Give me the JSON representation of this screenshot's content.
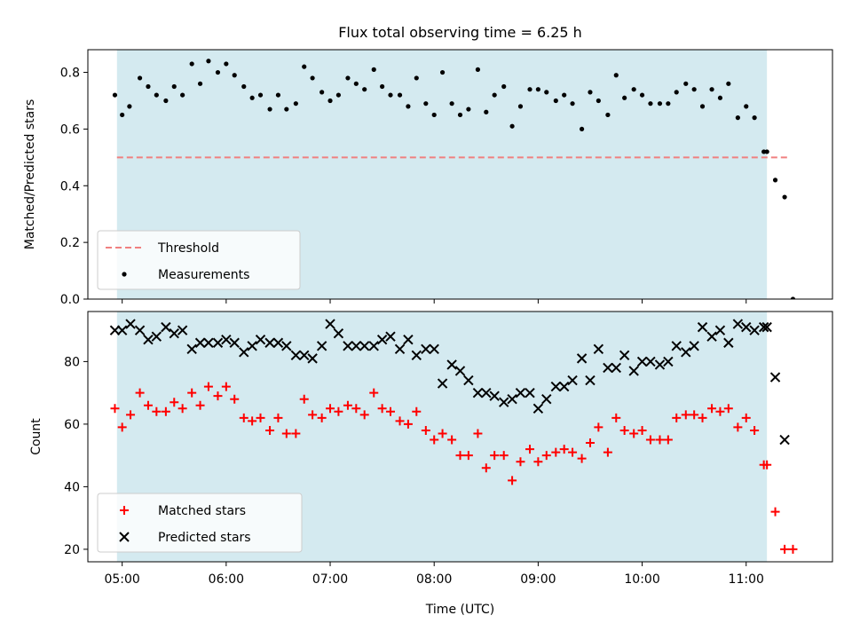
{
  "title": "Flux total observing time = 6.25 h",
  "colors": {
    "shade": "#d4eaf0",
    "threshold": "#f08080",
    "measurement": "#000000",
    "matched": "#ff0000",
    "predicted": "#000000"
  },
  "chart_data": [
    {
      "type": "scatter",
      "ylabel": "Matched/Predicted stars",
      "xlim": [
        4.67,
        11.83
      ],
      "ylim": [
        0,
        0.88
      ],
      "yticks": [
        0.0,
        0.2,
        0.4,
        0.6,
        0.8
      ],
      "ytick_labels": [
        "0.0",
        "0.2",
        "0.4",
        "0.6",
        "0.8"
      ],
      "shaded_x": [
        4.95,
        11.2
      ],
      "threshold": {
        "name": "Threshold",
        "y": 0.5,
        "x": [
          4.95,
          11.4
        ]
      },
      "legend": {
        "position": "lower-left",
        "entries": [
          "Threshold",
          "Measurements"
        ]
      },
      "series": [
        {
          "name": "Measurements",
          "x": [
            4.93,
            5.0,
            5.07,
            5.17,
            5.25,
            5.33,
            5.42,
            5.5,
            5.58,
            5.67,
            5.75,
            5.83,
            5.92,
            6.0,
            6.08,
            6.17,
            6.25,
            6.33,
            6.42,
            6.5,
            6.58,
            6.67,
            6.75,
            6.83,
            6.92,
            7.0,
            7.08,
            7.17,
            7.25,
            7.33,
            7.42,
            7.5,
            7.58,
            7.67,
            7.75,
            7.83,
            7.92,
            8.0,
            8.08,
            8.17,
            8.25,
            8.33,
            8.42,
            8.5,
            8.58,
            8.67,
            8.75,
            8.83,
            8.92,
            9.0,
            9.08,
            9.17,
            9.25,
            9.33,
            9.42,
            9.5,
            9.58,
            9.67,
            9.75,
            9.83,
            9.92,
            10.0,
            10.08,
            10.17,
            10.25,
            10.33,
            10.42,
            10.5,
            10.58,
            10.67,
            10.75,
            10.83,
            10.92,
            11.0,
            11.08,
            11.17,
            11.2,
            11.28,
            11.37,
            11.45
          ],
          "y": [
            0.72,
            0.65,
            0.68,
            0.78,
            0.75,
            0.72,
            0.7,
            0.75,
            0.72,
            0.83,
            0.76,
            0.84,
            0.8,
            0.83,
            0.79,
            0.75,
            0.71,
            0.72,
            0.67,
            0.72,
            0.67,
            0.69,
            0.82,
            0.78,
            0.73,
            0.7,
            0.72,
            0.78,
            0.76,
            0.74,
            0.81,
            0.75,
            0.72,
            0.72,
            0.68,
            0.78,
            0.69,
            0.65,
            0.8,
            0.69,
            0.65,
            0.67,
            0.81,
            0.66,
            0.72,
            0.75,
            0.61,
            0.68,
            0.74,
            0.74,
            0.73,
            0.7,
            0.72,
            0.69,
            0.6,
            0.73,
            0.7,
            0.65,
            0.79,
            0.71,
            0.74,
            0.72,
            0.69,
            0.69,
            0.69,
            0.73,
            0.76,
            0.74,
            0.68,
            0.74,
            0.71,
            0.76,
            0.64,
            0.68,
            0.64,
            0.52,
            0.52,
            0.42,
            0.36,
            0.0
          ]
        }
      ]
    },
    {
      "type": "scatter",
      "ylabel": "Count",
      "xlabel": "Time (UTC)",
      "xlim": [
        4.67,
        11.83
      ],
      "ylim": [
        16,
        96
      ],
      "yticks": [
        20,
        40,
        60,
        80
      ],
      "ytick_labels": [
        "20",
        "40",
        "60",
        "80"
      ],
      "xticks": [
        5,
        6,
        7,
        8,
        9,
        10,
        11
      ],
      "xtick_labels": [
        "05:00",
        "06:00",
        "07:00",
        "08:00",
        "09:00",
        "10:00",
        "11:00"
      ],
      "shaded_x": [
        4.95,
        11.2
      ],
      "legend": {
        "position": "lower-left",
        "entries": [
          "Matched stars",
          "Predicted stars"
        ]
      },
      "series": [
        {
          "name": "Matched stars",
          "marker": "plus",
          "x": [
            4.93,
            5.0,
            5.08,
            5.17,
            5.25,
            5.33,
            5.42,
            5.5,
            5.58,
            5.67,
            5.75,
            5.83,
            5.92,
            6.0,
            6.08,
            6.17,
            6.25,
            6.33,
            6.42,
            6.5,
            6.58,
            6.67,
            6.75,
            6.83,
            6.92,
            7.0,
            7.08,
            7.17,
            7.25,
            7.33,
            7.42,
            7.5,
            7.58,
            7.67,
            7.75,
            7.83,
            7.92,
            8.0,
            8.08,
            8.17,
            8.25,
            8.33,
            8.42,
            8.5,
            8.58,
            8.67,
            8.75,
            8.83,
            8.92,
            9.0,
            9.08,
            9.17,
            9.25,
            9.33,
            9.42,
            9.5,
            9.58,
            9.67,
            9.75,
            9.83,
            9.92,
            10.0,
            10.08,
            10.17,
            10.25,
            10.33,
            10.42,
            10.5,
            10.58,
            10.67,
            10.75,
            10.83,
            10.92,
            11.0,
            11.08,
            11.17,
            11.2,
            11.28,
            11.37,
            11.45
          ],
          "y": [
            65,
            59,
            63,
            70,
            66,
            64,
            64,
            67,
            65,
            70,
            66,
            72,
            69,
            72,
            68,
            62,
            61,
            62,
            58,
            62,
            57,
            57,
            68,
            63,
            62,
            65,
            64,
            66,
            65,
            63,
            70,
            65,
            64,
            61,
            60,
            64,
            58,
            55,
            57,
            55,
            50,
            50,
            57,
            46,
            50,
            50,
            42,
            48,
            52,
            48,
            50,
            51,
            52,
            51,
            49,
            54,
            59,
            51,
            62,
            58,
            57,
            58,
            55,
            55,
            55,
            62,
            63,
            63,
            62,
            65,
            64,
            65,
            59,
            62,
            58,
            47,
            47,
            32,
            20,
            20
          ]
        },
        {
          "name": "Predicted stars",
          "marker": "x",
          "x": [
            4.93,
            5.0,
            5.08,
            5.17,
            5.25,
            5.33,
            5.42,
            5.5,
            5.58,
            5.67,
            5.75,
            5.83,
            5.92,
            6.0,
            6.08,
            6.17,
            6.25,
            6.33,
            6.42,
            6.5,
            6.58,
            6.67,
            6.75,
            6.83,
            6.92,
            7.0,
            7.08,
            7.17,
            7.25,
            7.33,
            7.42,
            7.5,
            7.58,
            7.67,
            7.75,
            7.83,
            7.92,
            8.0,
            8.08,
            8.17,
            8.25,
            8.33,
            8.42,
            8.5,
            8.58,
            8.67,
            8.75,
            8.83,
            8.92,
            9.0,
            9.08,
            9.17,
            9.25,
            9.33,
            9.42,
            9.5,
            9.58,
            9.67,
            9.75,
            9.83,
            9.92,
            10.0,
            10.08,
            10.17,
            10.25,
            10.33,
            10.42,
            10.5,
            10.58,
            10.67,
            10.75,
            10.83,
            10.92,
            11.0,
            11.08,
            11.17,
            11.2,
            11.28,
            11.37
          ],
          "y": [
            90,
            90,
            92,
            90,
            87,
            88,
            91,
            89,
            90,
            84,
            86,
            86,
            86,
            87,
            86,
            83,
            85,
            87,
            86,
            86,
            85,
            82,
            82,
            81,
            85,
            92,
            89,
            85,
            85,
            85,
            85,
            87,
            88,
            84,
            87,
            82,
            84,
            84,
            73,
            79,
            77,
            74,
            70,
            70,
            69,
            67,
            68,
            70,
            70,
            65,
            68,
            72,
            72,
            74,
            81,
            74,
            84,
            78,
            78,
            82,
            77,
            80,
            80,
            79,
            80,
            85,
            83,
            85,
            91,
            88,
            90,
            86,
            92,
            91,
            90,
            91,
            91,
            75,
            55
          ]
        }
      ]
    }
  ]
}
